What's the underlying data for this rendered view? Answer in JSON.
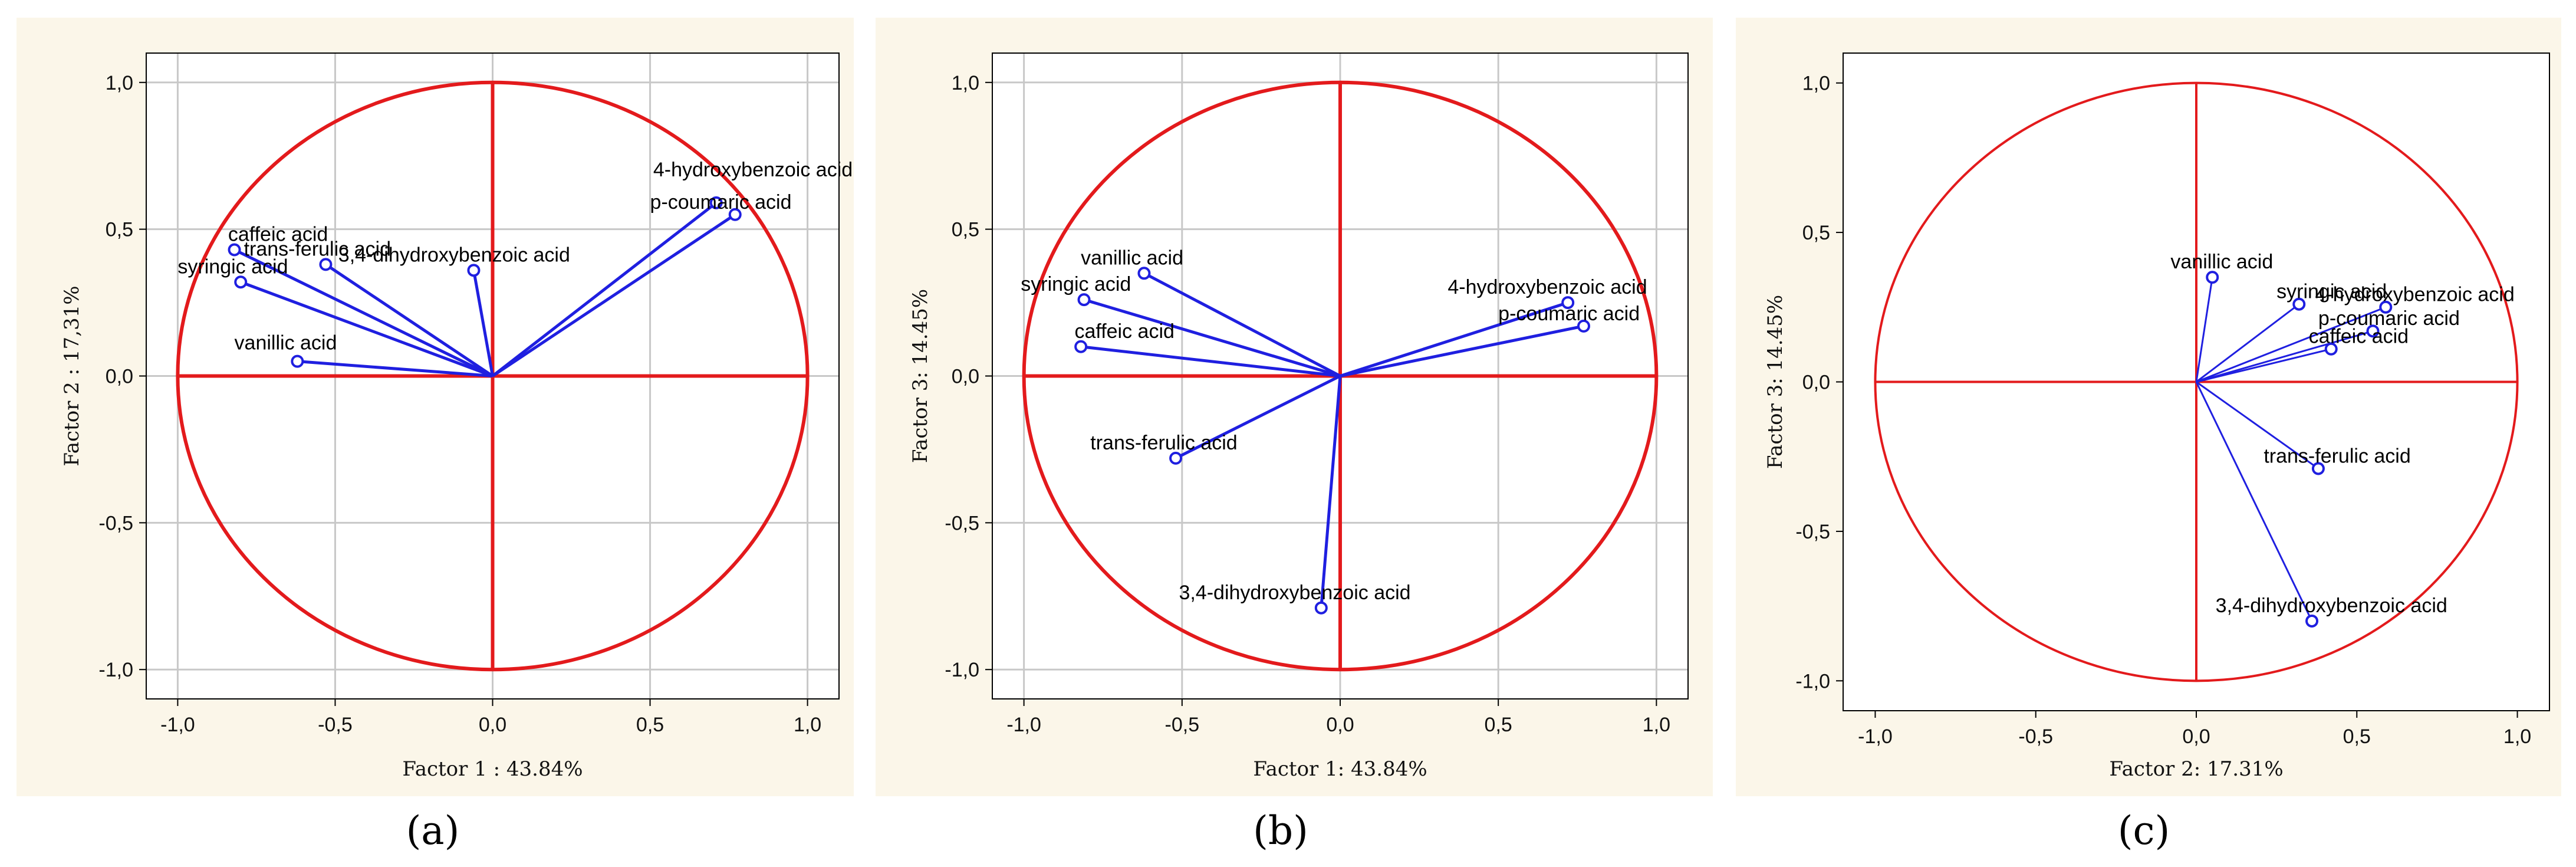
{
  "colors": {
    "circle": "#e31a1c",
    "vector": "#1f1fe0",
    "grid": "#c8c8c8",
    "background": "#fbf6e9"
  },
  "chart_data": [
    {
      "type": "scatter",
      "panel_label": "(a)",
      "title": "",
      "xlabel": "Factor 1 : 43.84%",
      "ylabel": "Factor 2 : 17,31%",
      "xlim": [
        -1.1,
        1.1
      ],
      "ylim": [
        -1.1,
        1.1
      ],
      "xticks": [
        "-1,0",
        "-0,5",
        "0,0",
        "0,5",
        "1,0"
      ],
      "yticks": [
        "1,0",
        "0,5",
        "0,0",
        "-0,5",
        "-1,0"
      ],
      "grid": true,
      "points": [
        {
          "name": "4-hydroxybenzoic acid",
          "x": 0.71,
          "y": 0.59,
          "label_anchor": "start",
          "label_dx": -0.2,
          "label_dy": 0.09
        },
        {
          "name": "p-coumaric acid",
          "x": 0.77,
          "y": 0.55,
          "label_anchor": "start",
          "label_dx": -0.27,
          "label_dy": 0.02
        },
        {
          "name": "caffeic acid",
          "x": -0.82,
          "y": 0.43,
          "label_anchor": "start",
          "label_dx": -0.02,
          "label_dy": 0.03
        },
        {
          "name": "trans-ferulic acid",
          "x": -0.53,
          "y": 0.38,
          "label_anchor": "start",
          "label_dx": -0.26,
          "label_dy": 0.03
        },
        {
          "name": "3,4-dihydroxybenzoic acid",
          "x": -0.06,
          "y": 0.36,
          "label_anchor": "start",
          "label_dx": -0.43,
          "label_dy": 0.03
        },
        {
          "name": "syringic acid",
          "x": -0.8,
          "y": 0.32,
          "label_anchor": "start",
          "label_dx": -0.2,
          "label_dy": 0.03
        },
        {
          "name": "vanillic acid",
          "x": -0.62,
          "y": 0.05,
          "label_anchor": "start",
          "label_dx": -0.2,
          "label_dy": 0.04
        }
      ]
    },
    {
      "type": "scatter",
      "panel_label": "(b)",
      "title": "",
      "xlabel": "Factor 1: 43.84%",
      "ylabel": "Factor 3: 14.45%",
      "xlim": [
        -1.1,
        1.1
      ],
      "ylim": [
        -1.1,
        1.1
      ],
      "xticks": [
        "-1,0",
        "-0,5",
        "0,0",
        "0,5",
        "1,0"
      ],
      "yticks": [
        "1,0",
        "0,5",
        "0,0",
        "-0,5",
        "-1,0"
      ],
      "grid": true,
      "points": [
        {
          "name": "vanillic acid",
          "x": -0.62,
          "y": 0.35,
          "label_anchor": "start",
          "label_dx": -0.2,
          "label_dy": 0.03
        },
        {
          "name": "syringic acid",
          "x": -0.81,
          "y": 0.26,
          "label_anchor": "start",
          "label_dx": -0.2,
          "label_dy": 0.03
        },
        {
          "name": "caffeic acid",
          "x": -0.82,
          "y": 0.1,
          "label_anchor": "start",
          "label_dx": -0.02,
          "label_dy": 0.03
        },
        {
          "name": "4-hydroxybenzoic acid",
          "x": 0.72,
          "y": 0.25,
          "label_anchor": "start",
          "label_dx": -0.38,
          "label_dy": 0.03
        },
        {
          "name": "p-coumaric acid",
          "x": 0.77,
          "y": 0.17,
          "label_anchor": "start",
          "label_dx": -0.27,
          "label_dy": 0.02
        },
        {
          "name": "trans-ferulic acid",
          "x": -0.52,
          "y": -0.28,
          "label_anchor": "start",
          "label_dx": -0.27,
          "label_dy": 0.03
        },
        {
          "name": "3,4-dihydroxybenzoic acid",
          "x": -0.06,
          "y": -0.79,
          "label_anchor": "start",
          "label_dx": -0.45,
          "label_dy": 0.03
        }
      ]
    },
    {
      "type": "scatter",
      "panel_label": "(c)",
      "title": "",
      "xlabel": "Factor 2: 17.31%",
      "ylabel": "Factor 3: 14.45%",
      "xlim": [
        -1.1,
        1.1
      ],
      "ylim": [
        -1.1,
        1.1
      ],
      "xticks": [
        "-1,0",
        "-0,5",
        "0,0",
        "0,5",
        "1,0"
      ],
      "yticks": [
        "1,0",
        "0,5",
        "0,0",
        "-0,5",
        "-1,0"
      ],
      "grid": false,
      "points": [
        {
          "name": "vanillic acid",
          "x": 0.05,
          "y": 0.35,
          "label_anchor": "start",
          "label_dx": -0.13,
          "label_dy": 0.03
        },
        {
          "name": "syringic acid",
          "x": 0.32,
          "y": 0.26,
          "label_anchor": "start",
          "label_dx": -0.07,
          "label_dy": 0.02
        },
        {
          "name": "4-hydroxybenzoic acid",
          "x": 0.59,
          "y": 0.25,
          "label_anchor": "start",
          "label_dx": -0.22,
          "label_dy": 0.02
        },
        {
          "name": "p-coumaric acid",
          "x": 0.55,
          "y": 0.17,
          "label_anchor": "start",
          "label_dx": -0.17,
          "label_dy": 0.02
        },
        {
          "name": "caffeic acid",
          "x": 0.42,
          "y": 0.11,
          "label_anchor": "start",
          "label_dx": -0.07,
          "label_dy": 0.02
        },
        {
          "name": "trans-ferulic acid",
          "x": 0.38,
          "y": -0.29,
          "label_anchor": "start",
          "label_dx": -0.17,
          "label_dy": 0.02
        },
        {
          "name": "3,4-dihydroxybenzoic acid",
          "x": 0.36,
          "y": -0.8,
          "label_anchor": "start",
          "label_dx": -0.3,
          "label_dy": 0.03
        }
      ]
    }
  ]
}
